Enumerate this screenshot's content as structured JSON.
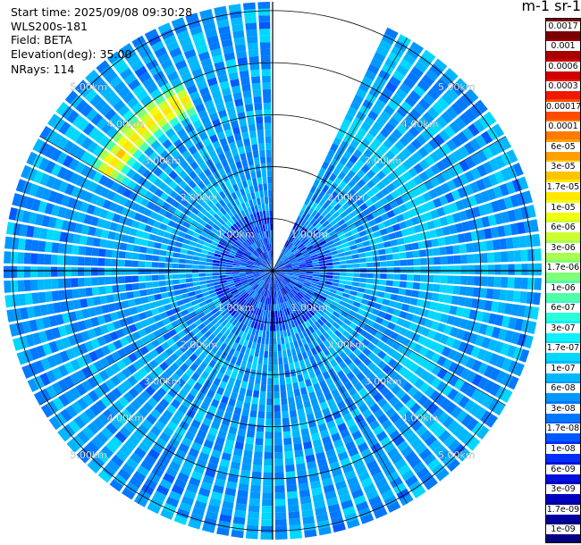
{
  "info": {
    "start_time": "Start time: 2025/09/08 09:30:28",
    "instrument": "WLS200s-181",
    "field": "Field: BETA",
    "elevation": "Elevation(deg): 35.00",
    "nrays": "NRays: 114"
  },
  "colorbar": {
    "title": "m-1 sr-1",
    "labels": [
      "0.0017",
      "0.001",
      "0.0006",
      "0.0003",
      "0.00017",
      "0.0001",
      "6e-05",
      "3e-05",
      "1.7e-05",
      "1e-05",
      "6e-06",
      "3e-06",
      "1.7e-06",
      "1e-06",
      "6e-07",
      "3e-07",
      "1.7e-07",
      "1e-07",
      "6e-08",
      "3e-08",
      "1.7e-08",
      "1e-08",
      "6e-09",
      "3e-09",
      "1.7e-09",
      "1e-09"
    ],
    "colors": [
      "#7a0000",
      "#a80000",
      "#d00000",
      "#f01800",
      "#ff4a00",
      "#ff7a00",
      "#ffa000",
      "#ffc400",
      "#ffe800",
      "#f0ff10",
      "#ccff30",
      "#a8ff50",
      "#80ff78",
      "#50ffa8",
      "#28ffd8",
      "#10f0f8",
      "#00d8ff",
      "#00b8ff",
      "#0098ff",
      "#0078ff",
      "#0058ff",
      "#0030f8",
      "#0010e0",
      "#0000c0",
      "#0000a0",
      "#000080"
    ]
  },
  "chart_data": {
    "type": "ppi",
    "field": "BETA",
    "units": "m-1 sr-1",
    "elevation_deg": 35.0,
    "nrays": 114,
    "range_rings_km": [
      1.0,
      2.0,
      3.0,
      4.0,
      5.0
    ],
    "range_ring_labels": [
      "1.00km",
      "2.00km",
      "3.00km",
      "4.00km",
      "5.00km"
    ],
    "max_range_km": 5.17,
    "missing_sector_deg": [
      0,
      23
    ],
    "color_scale": "log",
    "color_range": [
      1e-09,
      0.0017
    ],
    "features": [
      {
        "region": "northwest arc",
        "range_km": 3.7,
        "azimuth_deg": [
          300,
          335
        ],
        "beta": 1.7e-05
      },
      {
        "region": "northeast arc",
        "range_km": 3.1,
        "azimuth_deg": [
          20,
          80
        ],
        "beta": 1.7e-07
      },
      {
        "region": "east arc",
        "range_km": 3.3,
        "azimuth_deg": [
          90,
          130
        ],
        "beta": 1.7e-07
      },
      {
        "region": "background",
        "range_km": [
          0,
          5.17
        ],
        "azimuth_deg": [
          0,
          360
        ],
        "beta": 6e-08
      }
    ],
    "grid": true
  }
}
